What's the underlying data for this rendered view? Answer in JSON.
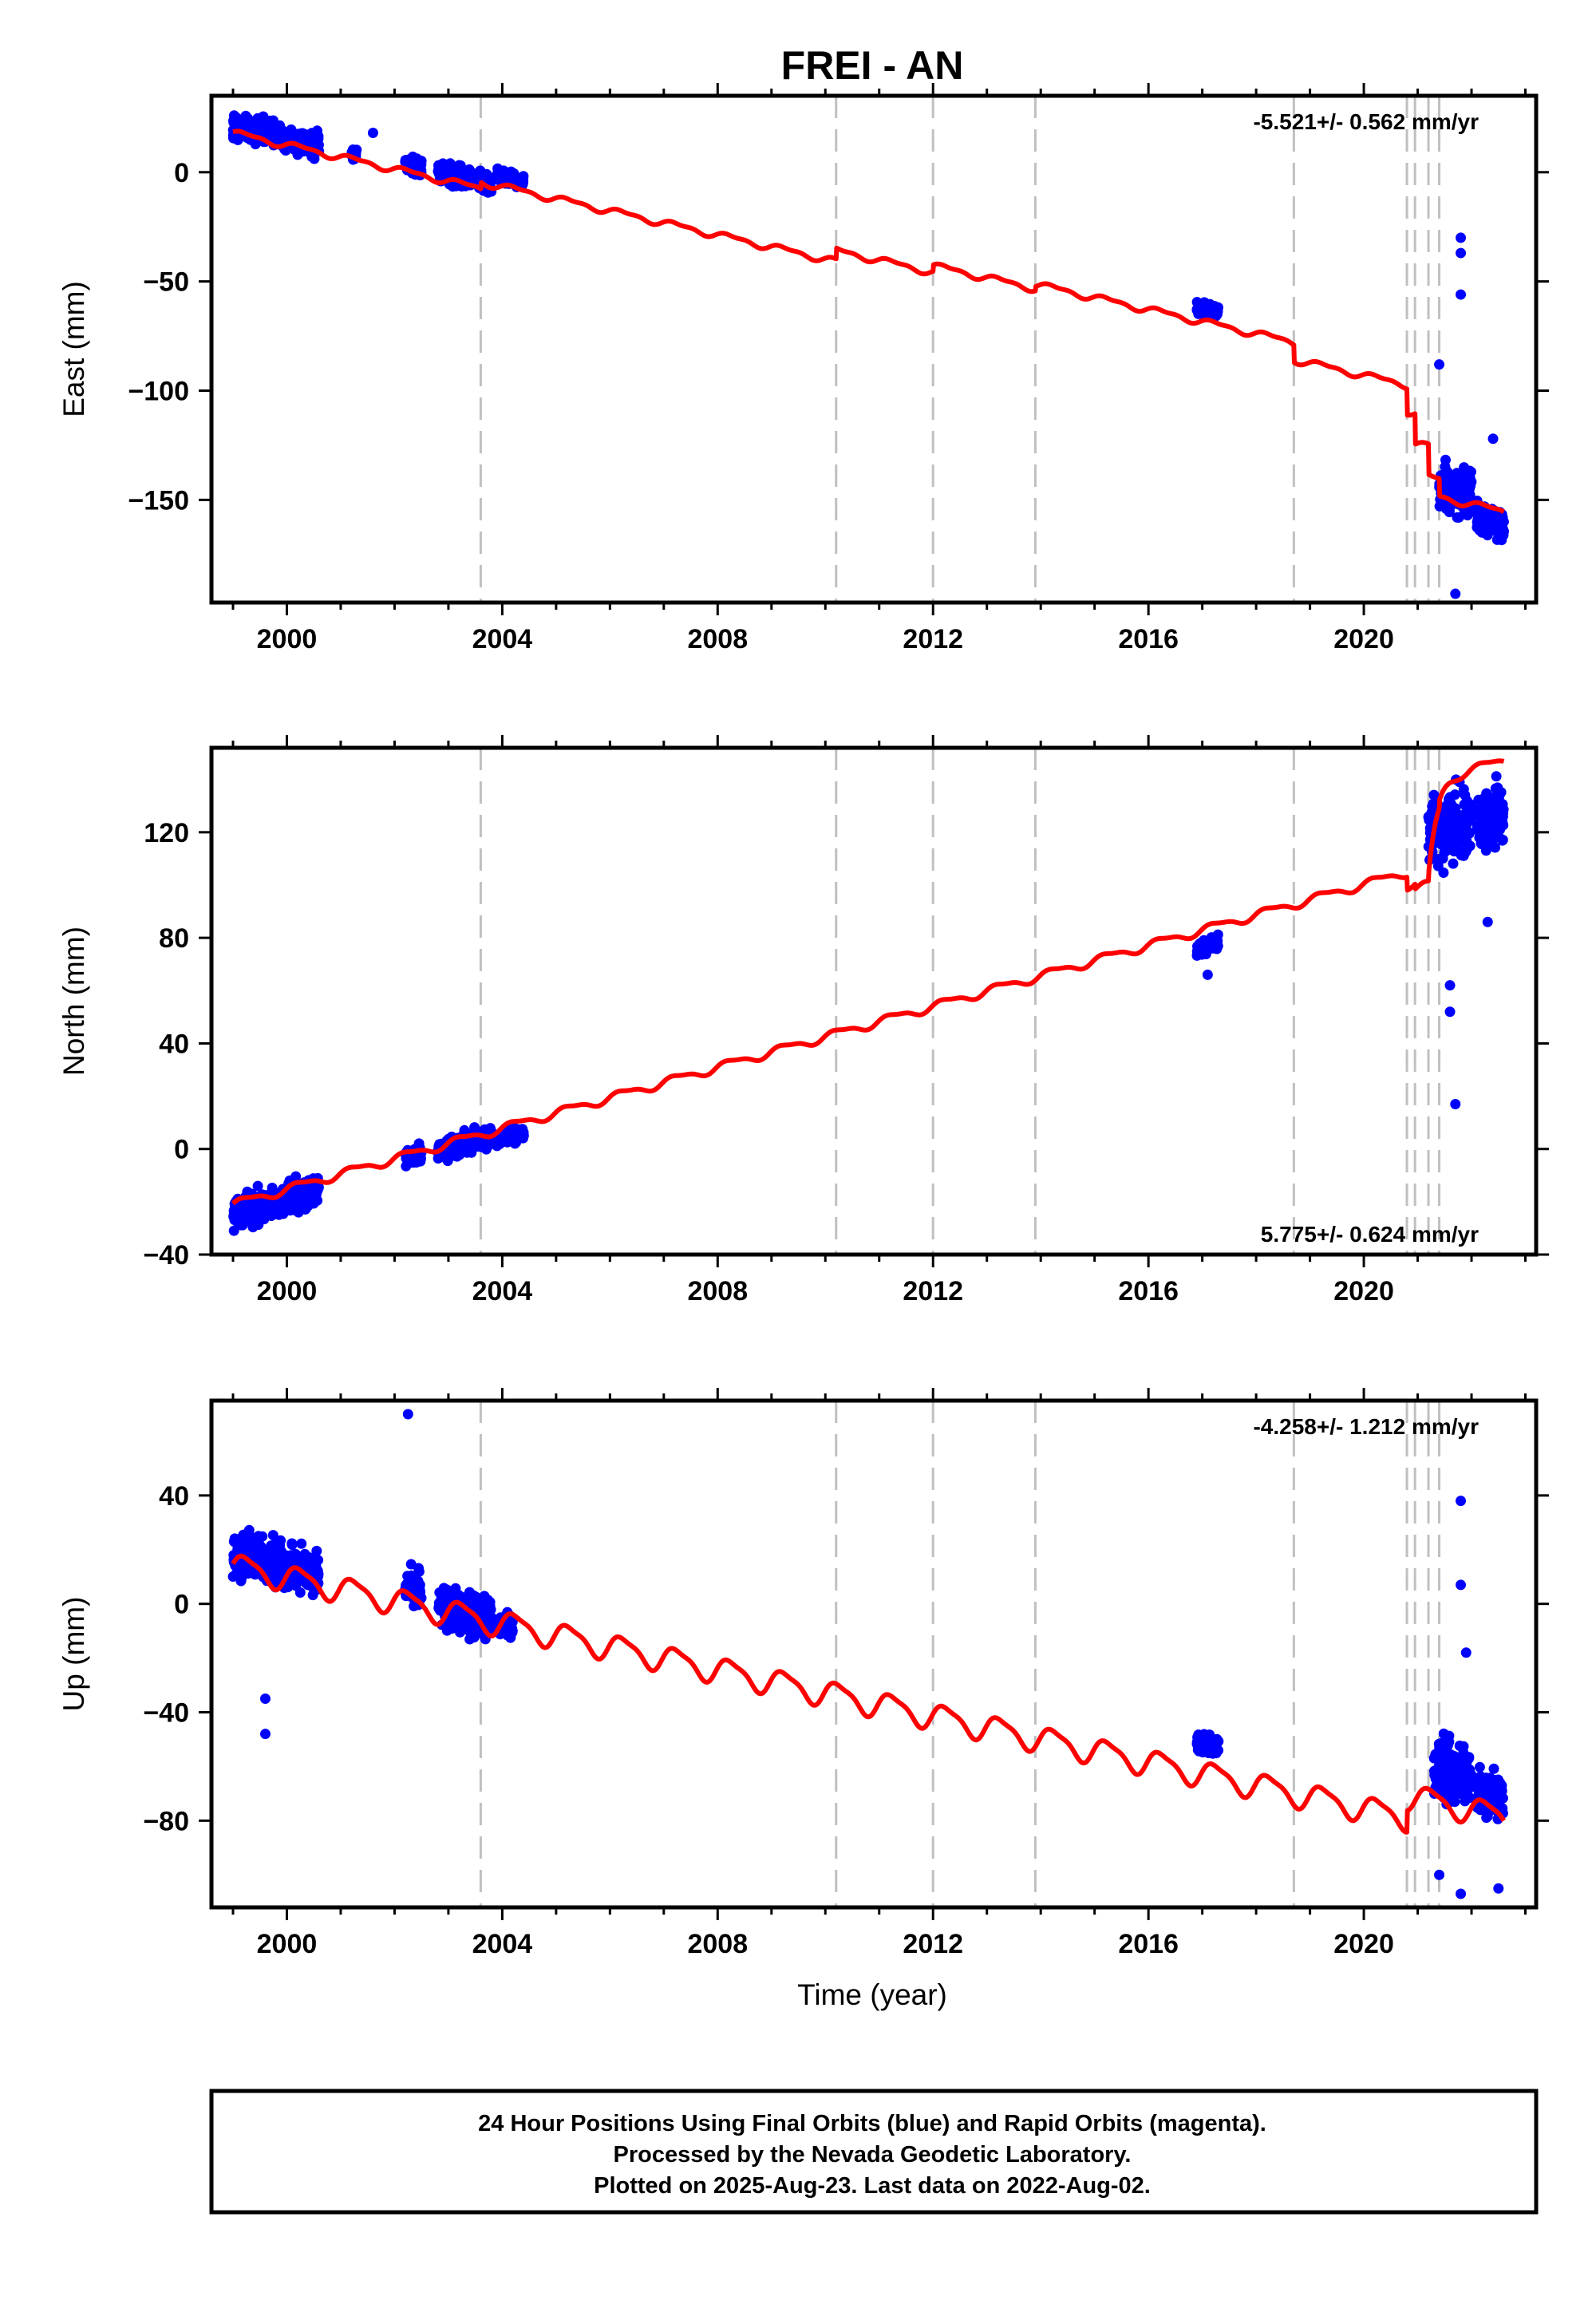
{
  "figure": {
    "title": "FREI - AN",
    "xlabel": "Time (year)",
    "footer": [
      "24 Hour Positions Using Final Orbits (blue) and Rapid Orbits (magenta).",
      "Processed by the Nevada Geodetic Laboratory.",
      "Plotted on 2025-Aug-23. Last data on 2022-Aug-02."
    ],
    "colors": {
      "data": "#0000ff",
      "model": "#ff0000",
      "event_lines": "#c0c0c0",
      "frame": "#000000"
    }
  },
  "chart_data": [
    {
      "type": "scatter",
      "component": "East",
      "ylabel": "East (mm)",
      "rate_text": "-5.521+/- 0.562 mm/yr",
      "rate_position": "top-right",
      "xlim": [
        1998.6,
        2023.2
      ],
      "ylim": [
        -197,
        35
      ],
      "x_ticks": [
        2000,
        2004,
        2008,
        2012,
        2016,
        2020
      ],
      "y_ticks": [
        0,
        -50,
        -100,
        -150
      ],
      "event_lines": [
        2003.6,
        2010.2,
        2012.0,
        2013.9,
        2018.7,
        2020.8,
        2020.95,
        2021.2,
        2021.4
      ],
      "data_clusters": [
        {
          "x": [
            1999.0,
            2000.6
          ],
          "y_center": 17,
          "spread": 6
        },
        {
          "x": [
            2001.2,
            2001.3
          ],
          "y_center": 8,
          "spread": 3
        },
        {
          "x": [
            2002.2,
            2002.5
          ],
          "y_center": 3,
          "spread": 4
        },
        {
          "x": [
            2002.8,
            2003.8
          ],
          "y_center": -3,
          "spread": 5
        },
        {
          "x": [
            2003.9,
            2004.4
          ],
          "y_center": -3,
          "spread": 3
        },
        {
          "x": [
            2016.9,
            2017.3
          ],
          "y_center": -63,
          "spread": 3
        },
        {
          "x": [
            2021.4,
            2022.0
          ],
          "y_center": -145,
          "spread": 14
        },
        {
          "x": [
            2022.1,
            2022.6
          ],
          "y_center": -160,
          "spread": 8
        }
      ],
      "outliers": [
        [
          2001.6,
          18
        ],
        [
          2021.8,
          -30
        ],
        [
          2021.8,
          -37
        ],
        [
          2021.8,
          -56
        ],
        [
          2021.4,
          -88
        ],
        [
          2022.4,
          -122
        ],
        [
          2021.7,
          -193
        ]
      ],
      "model": {
        "t0": 1999.0,
        "y0": 18,
        "rate": -5.521,
        "annual_amplitude": 1.3,
        "semiannual_amplitude": 0.6,
        "offsets": [
          [
            2003.6,
            3
          ],
          [
            2010.2,
            5
          ],
          [
            2012.0,
            3
          ],
          [
            2013.9,
            2
          ],
          [
            2018.7,
            -8
          ],
          [
            2020.8,
            -12
          ],
          [
            2020.95,
            -14
          ],
          [
            2021.2,
            -14
          ],
          [
            2021.4,
            -8
          ]
        ],
        "postseismic": [
          {
            "t": 2020.8,
            "amp": 0,
            "tau": 0.3
          }
        ],
        "end": 2022.6
      }
    },
    {
      "type": "scatter",
      "component": "North",
      "ylabel": "North (mm)",
      "rate_text": "5.775+/- 0.624 mm/yr",
      "rate_position": "bottom-right",
      "xlim": [
        1998.6,
        2023.2
      ],
      "ylim": [
        -40,
        152
      ],
      "x_ticks": [
        2000,
        2004,
        2008,
        2012,
        2016,
        2020
      ],
      "y_ticks": [
        -40,
        0,
        40,
        80,
        120
      ],
      "event_lines": [
        2003.6,
        2010.2,
        2012.0,
        2013.9,
        2018.7,
        2020.8,
        2020.95,
        2021.2,
        2021.4
      ],
      "data_clusters": [
        {
          "x": [
            1999.0,
            2000.6
          ],
          "y_center": -20,
          "spread": 6
        },
        {
          "x": [
            2002.2,
            2002.5
          ],
          "y_center": -3,
          "spread": 4
        },
        {
          "x": [
            2002.8,
            2003.8
          ],
          "y_center": 2,
          "spread": 4
        },
        {
          "x": [
            2003.9,
            2004.4
          ],
          "y_center": 5,
          "spread": 3
        },
        {
          "x": [
            2016.9,
            2017.3
          ],
          "y_center": 77,
          "spread": 3
        },
        {
          "x": [
            2021.2,
            2022.0
          ],
          "y_center": 122,
          "spread": 14
        },
        {
          "x": [
            2022.1,
            2022.6
          ],
          "y_center": 125,
          "spread": 12
        }
      ],
      "outliers": [
        [
          2021.7,
          17
        ],
        [
          2021.6,
          52
        ],
        [
          2021.6,
          62
        ],
        [
          2017.1,
          66
        ],
        [
          2022.3,
          86
        ]
      ],
      "model": {
        "t0": 1999.0,
        "y0": -21,
        "rate": 5.775,
        "annual_amplitude": 1.5,
        "semiannual_amplitude": 0.5,
        "offsets": [
          [
            2003.6,
            0
          ],
          [
            2010.2,
            0
          ],
          [
            2012.0,
            0
          ],
          [
            2013.9,
            0
          ],
          [
            2018.7,
            0
          ],
          [
            2020.8,
            -5
          ],
          [
            2020.95,
            -2
          ],
          [
            2021.2,
            2
          ],
          [
            2021.4,
            3
          ]
        ],
        "postseismic": [
          {
            "t": 2021.2,
            "amp": 34,
            "tau": 0.15
          }
        ],
        "end": 2022.6
      }
    },
    {
      "type": "scatter",
      "component": "Up",
      "ylabel": "Up (mm)",
      "rate_text": "-4.258+/- 1.212 mm/yr",
      "rate_position": "top-right",
      "xlim": [
        1998.6,
        2023.2
      ],
      "ylim": [
        -112,
        75
      ],
      "x_ticks": [
        2000,
        2004,
        2008,
        2012,
        2016,
        2020
      ],
      "y_ticks": [
        40,
        0,
        -40,
        -80
      ],
      "event_lines": [
        2003.6,
        2010.2,
        2012.0,
        2013.9,
        2018.7,
        2020.8,
        2020.95,
        2021.2,
        2021.4
      ],
      "data_clusters": [
        {
          "x": [
            1999.0,
            2000.6
          ],
          "y_center": 15,
          "spread": 9
        },
        {
          "x": [
            2002.2,
            2002.5
          ],
          "y_center": 5,
          "spread": 7
        },
        {
          "x": [
            2002.8,
            2003.8
          ],
          "y_center": -3,
          "spread": 8
        },
        {
          "x": [
            2003.9,
            2004.2
          ],
          "y_center": -8,
          "spread": 5
        },
        {
          "x": [
            2016.9,
            2017.3
          ],
          "y_center": -52,
          "spread": 4
        },
        {
          "x": [
            2021.3,
            2022.0
          ],
          "y_center": -62,
          "spread": 12
        },
        {
          "x": [
            2022.1,
            2022.6
          ],
          "y_center": -70,
          "spread": 10
        }
      ],
      "outliers": [
        [
          2002.25,
          70
        ],
        [
          1999.6,
          -48
        ],
        [
          1999.6,
          -35
        ],
        [
          2021.8,
          38
        ],
        [
          2021.8,
          7
        ],
        [
          2021.9,
          -18
        ],
        [
          2021.8,
          -107
        ],
        [
          2022.5,
          -105
        ],
        [
          2021.4,
          -100
        ]
      ],
      "model": {
        "t0": 1999.0,
        "y0": 14,
        "rate": -4.258,
        "annual_amplitude": 4.5,
        "semiannual_amplitude": 1.2,
        "offsets": [
          [
            2003.6,
            0
          ],
          [
            2010.2,
            0
          ],
          [
            2012.0,
            0
          ],
          [
            2013.9,
            0
          ],
          [
            2018.7,
            0
          ],
          [
            2020.8,
            8
          ],
          [
            2020.95,
            0
          ],
          [
            2021.2,
            0
          ],
          [
            2021.4,
            0
          ]
        ],
        "postseismic": [
          {
            "t": 2020.8,
            "amp": 0,
            "tau": 0.3
          }
        ],
        "end": 2022.6
      }
    }
  ]
}
